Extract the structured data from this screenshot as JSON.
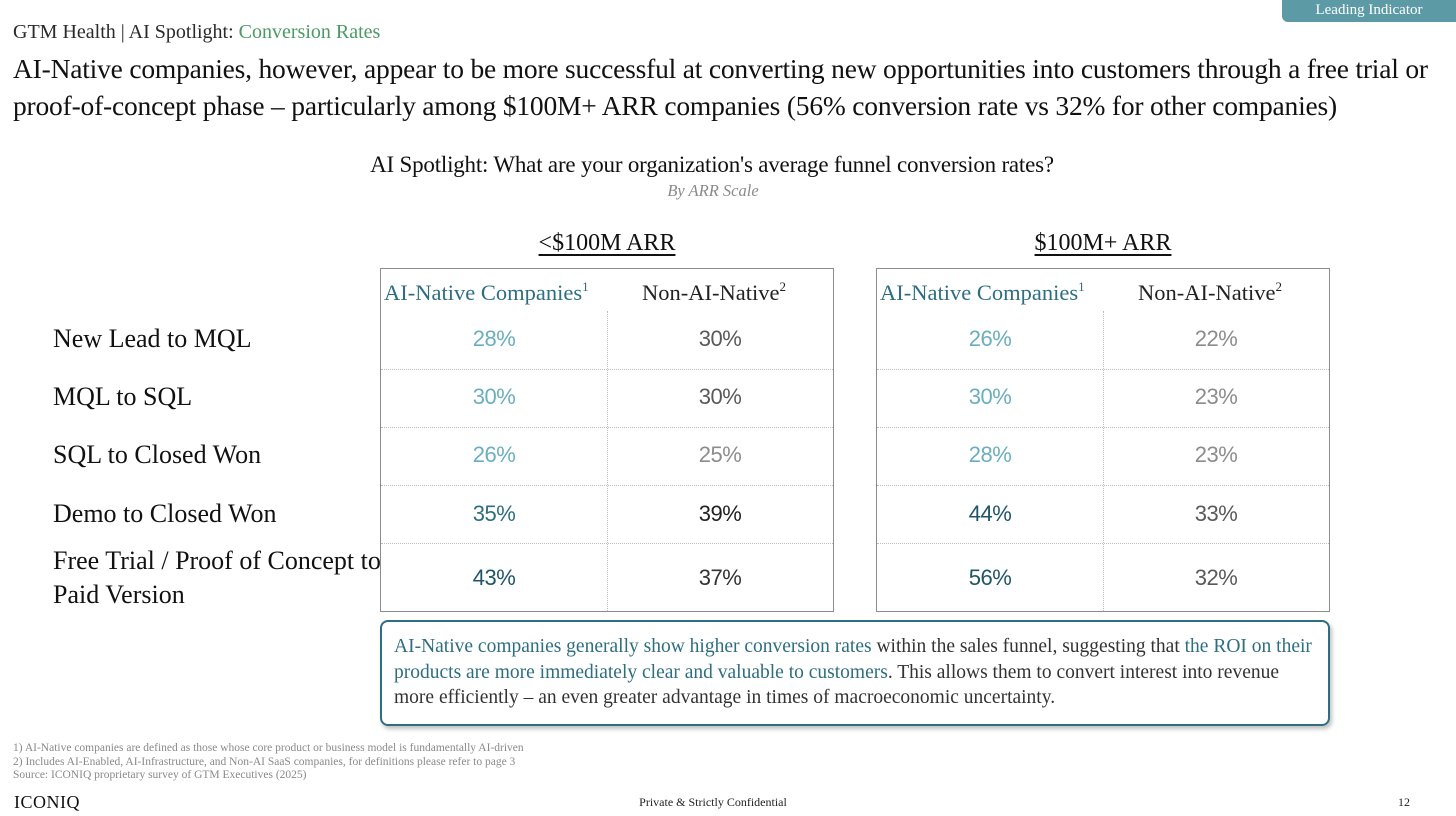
{
  "badge": "Leading Indicator",
  "breadcrumb": {
    "prefix": "GTM Health | AI Spotlight: ",
    "topic": "Conversion Rates"
  },
  "headline": "AI-Native companies, however, appear to be more successful at converting new opportunities into customers through a free trial or proof-of-concept phase – particularly among $100M+ ARR companies (56% conversion rate vs 32% for other companies)",
  "chart": {
    "title": "AI Spotlight: What are your organization's average funnel conversion rates?",
    "subtitle": "By ARR Scale"
  },
  "row_labels": [
    "New Lead to MQL",
    "MQL to SQL",
    "SQL to Closed Won",
    "Demo to Closed Won",
    "Free Trial / Proof of Concept to Paid Version"
  ],
  "groups": [
    {
      "title": "<$100M ARR",
      "col_ai": "AI-Native Companies",
      "col_ai_note": "1",
      "col_non": "Non-AI-Native",
      "col_non_note": "2",
      "ai_values": [
        "28%",
        "30%",
        "26%",
        "35%",
        "43%"
      ],
      "non_values": [
        "30%",
        "30%",
        "25%",
        "39%",
        "37%"
      ]
    },
    {
      "title": "$100M+ ARR",
      "col_ai": "AI-Native Companies",
      "col_ai_note": "1",
      "col_non": "Non-AI-Native",
      "col_non_note": "2",
      "ai_values": [
        "26%",
        "30%",
        "28%",
        "44%",
        "56%"
      ],
      "non_values": [
        "22%",
        "23%",
        "23%",
        "33%",
        "32%"
      ]
    }
  ],
  "callout": {
    "part1": "AI-Native companies generally show higher conversion rates",
    "part2": " within the sales funnel, suggesting that ",
    "part3": "the ROI on their products are more immediately clear and valuable to customers",
    "part4": ". This allows them to convert interest into revenue more efficiently – an even greater advantage in times of macroeconomic uncertainty."
  },
  "footnotes": [
    "1) AI-Native companies are defined as those whose core product or business model is fundamentally AI-driven",
    "2) Includes AI-Enabled, AI-Infrastructure, and Non-AI SaaS companies, for definitions please refer to page 3",
    "Source: ICONIQ proprietary survey of GTM Executives (2025)"
  ],
  "footer": {
    "logo": "ICONIQ",
    "confidential": "Private & Strictly Confidential",
    "page_number": "12"
  },
  "colors": {
    "ai_light": "#6aaec0",
    "ai_dark": "#1f5566",
    "non_light": "#8c8c8c",
    "non_mid": "#5a5a5a",
    "non_dark": "#222222"
  }
}
